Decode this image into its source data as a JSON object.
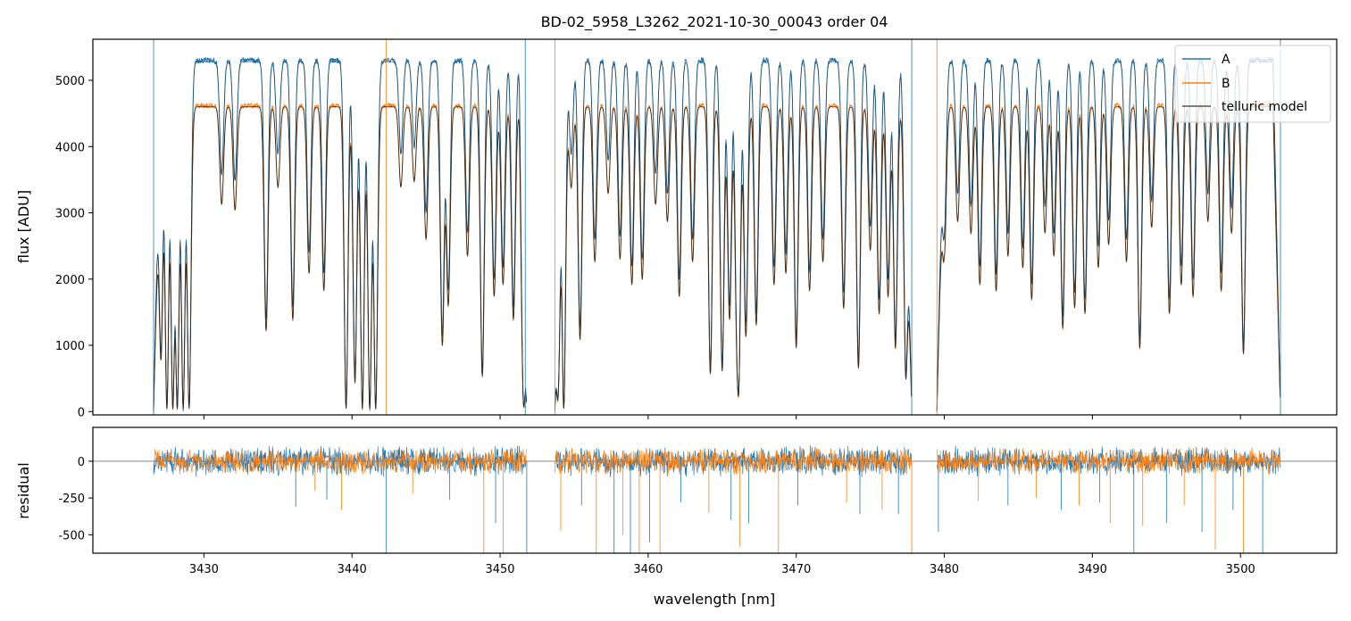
{
  "chart_data": [
    {
      "type": "line",
      "title": "BD-02_5958_L3262_2021-10-30_00043  order 04",
      "xlabel": "",
      "ylabel": "flux [ADU]",
      "xlim": [
        3422.5,
        3506.5
      ],
      "ylim": [
        -50,
        5620
      ],
      "yticks": [
        0,
        1000,
        2000,
        3000,
        4000,
        5000
      ],
      "xticks": [
        3430,
        3440,
        3450,
        3460,
        3470,
        3480,
        3490,
        3500
      ],
      "legend_position": "top-right",
      "series": [
        {
          "name": "A",
          "color": "#1f77b4",
          "continuum": 5300
        },
        {
          "name": "B",
          "color": "#ff7f0e",
          "continuum": 4620
        },
        {
          "name": "telluric model",
          "color": "#555555",
          "continuum": 4600
        }
      ],
      "segments": [
        [
          3426.6,
          3451.8
        ],
        [
          3453.7,
          3477.8
        ],
        [
          3479.5,
          3502.7
        ]
      ],
      "absorption_lines": [
        [
          3427.1,
          900
        ],
        [
          3427.5,
          50
        ],
        [
          3427.9,
          50
        ],
        [
          3428.2,
          50
        ],
        [
          3428.6,
          50
        ],
        [
          3429.0,
          50
        ],
        [
          3431.2,
          3600
        ],
        [
          3432.1,
          3500
        ],
        [
          3434.2,
          1400
        ],
        [
          3435.0,
          3900
        ],
        [
          3436.0,
          1600
        ],
        [
          3437.1,
          2400
        ],
        [
          3438.1,
          2100
        ],
        [
          3439.6,
          50
        ],
        [
          3440.2,
          500
        ],
        [
          3440.7,
          50
        ],
        [
          3441.2,
          50
        ],
        [
          3441.6,
          50
        ],
        [
          3443.3,
          3900
        ],
        [
          3444.2,
          4000
        ],
        [
          3445.0,
          3000
        ],
        [
          3446.1,
          1150
        ],
        [
          3446.5,
          1850
        ],
        [
          3447.8,
          2700
        ],
        [
          3448.8,
          600
        ],
        [
          3449.6,
          2000
        ],
        [
          3450.2,
          2200
        ],
        [
          3450.9,
          1600
        ],
        [
          3451.6,
          200
        ],
        [
          3453.9,
          500
        ],
        [
          3454.3,
          50
        ],
        [
          3454.8,
          3900
        ],
        [
          3455.4,
          1250
        ],
        [
          3456.4,
          2600
        ],
        [
          3457.3,
          3800
        ],
        [
          3458.1,
          2650
        ],
        [
          3458.9,
          2200
        ],
        [
          3459.6,
          2300
        ],
        [
          3460.5,
          3600
        ],
        [
          3461.3,
          3300
        ],
        [
          3462.1,
          2000
        ],
        [
          3463.0,
          2600
        ],
        [
          3464.2,
          650
        ],
        [
          3465.0,
          700
        ],
        [
          3465.5,
          1600
        ],
        [
          3466.0,
          2300
        ],
        [
          3466.1,
          450
        ],
        [
          3466.6,
          1300
        ],
        [
          3467.3,
          1500
        ],
        [
          3468.5,
          2200
        ],
        [
          3469.3,
          2400
        ],
        [
          3470.0,
          1100
        ],
        [
          3470.9,
          2100
        ],
        [
          3471.8,
          2600
        ],
        [
          3473.2,
          1800
        ],
        [
          3474.2,
          750
        ],
        [
          3475.0,
          2800
        ],
        [
          3475.6,
          1700
        ],
        [
          3476.2,
          2000
        ],
        [
          3476.7,
          1100
        ],
        [
          3477.4,
          700
        ],
        [
          3480.0,
          2700
        ],
        [
          3480.9,
          3300
        ],
        [
          3481.8,
          3100
        ],
        [
          3482.4,
          2200
        ],
        [
          3483.5,
          2100
        ],
        [
          3484.3,
          2700
        ],
        [
          3485.3,
          2500
        ],
        [
          3485.9,
          1950
        ],
        [
          3486.8,
          3100
        ],
        [
          3487.4,
          2700
        ],
        [
          3488.0,
          1450
        ],
        [
          3488.8,
          1800
        ],
        [
          3489.5,
          1700
        ],
        [
          3490.4,
          2500
        ],
        [
          3491.1,
          2900
        ],
        [
          3492.3,
          2600
        ],
        [
          3493.2,
          1100
        ],
        [
          3494.0,
          3200
        ],
        [
          3495.2,
          1700
        ],
        [
          3496.0,
          2200
        ],
        [
          3496.8,
          2000
        ],
        [
          3497.8,
          3300
        ],
        [
          3498.7,
          2100
        ],
        [
          3499.4,
          3100
        ],
        [
          3500.2,
          1000
        ]
      ]
    },
    {
      "type": "line",
      "title": "",
      "xlabel": "wavelength [nm]",
      "ylabel": "residual",
      "xlim": [
        3422.5,
        3506.5
      ],
      "ylim": [
        -625,
        230
      ],
      "yticks": [
        0,
        -250,
        -500
      ],
      "xticks": [
        3430,
        3440,
        3450,
        3460,
        3470,
        3480,
        3490,
        3500
      ],
      "series": [
        {
          "name": "A",
          "color": "#1f77b4"
        },
        {
          "name": "B",
          "color": "#ff7f0e"
        }
      ],
      "residual_spikes": [
        [
          3436.2,
          -310
        ],
        [
          3437.5,
          -200
        ],
        [
          3438.3,
          -260
        ],
        [
          3439.3,
          -330
        ],
        [
          3442.3,
          -625
        ],
        [
          3444.1,
          -220
        ],
        [
          3446.6,
          -260
        ],
        [
          3448.9,
          -625
        ],
        [
          3449.7,
          -420
        ],
        [
          3450.2,
          -625
        ],
        [
          3451.8,
          -625
        ],
        [
          3454.1,
          -470
        ],
        [
          3455.5,
          -300
        ],
        [
          3456.5,
          -625
        ],
        [
          3457.7,
          -625
        ],
        [
          3458.3,
          -500
        ],
        [
          3458.8,
          -625
        ],
        [
          3459.4,
          -625
        ],
        [
          3460.1,
          -550
        ],
        [
          3460.8,
          -625
        ],
        [
          3462.2,
          -280
        ],
        [
          3464.1,
          -350
        ],
        [
          3465.6,
          -400
        ],
        [
          3466.2,
          -580
        ],
        [
          3466.8,
          -420
        ],
        [
          3468.8,
          -625
        ],
        [
          3470.1,
          -300
        ],
        [
          3473.4,
          -280
        ],
        [
          3474.3,
          -360
        ],
        [
          3475.8,
          -330
        ],
        [
          3476.9,
          -360
        ],
        [
          3477.8,
          -625
        ],
        [
          3479.6,
          -480
        ],
        [
          3482.3,
          -270
        ],
        [
          3484.3,
          -300
        ],
        [
          3486.2,
          -250
        ],
        [
          3487.9,
          -330
        ],
        [
          3489.1,
          -300
        ],
        [
          3490.5,
          -280
        ],
        [
          3491.2,
          -420
        ],
        [
          3492.8,
          -625
        ],
        [
          3493.4,
          -440
        ],
        [
          3495.0,
          -420
        ],
        [
          3496.2,
          -300
        ],
        [
          3497.4,
          -480
        ],
        [
          3498.3,
          -600
        ],
        [
          3499.5,
          -330
        ],
        [
          3500.2,
          -625
        ],
        [
          3501.5,
          -625
        ]
      ]
    }
  ]
}
